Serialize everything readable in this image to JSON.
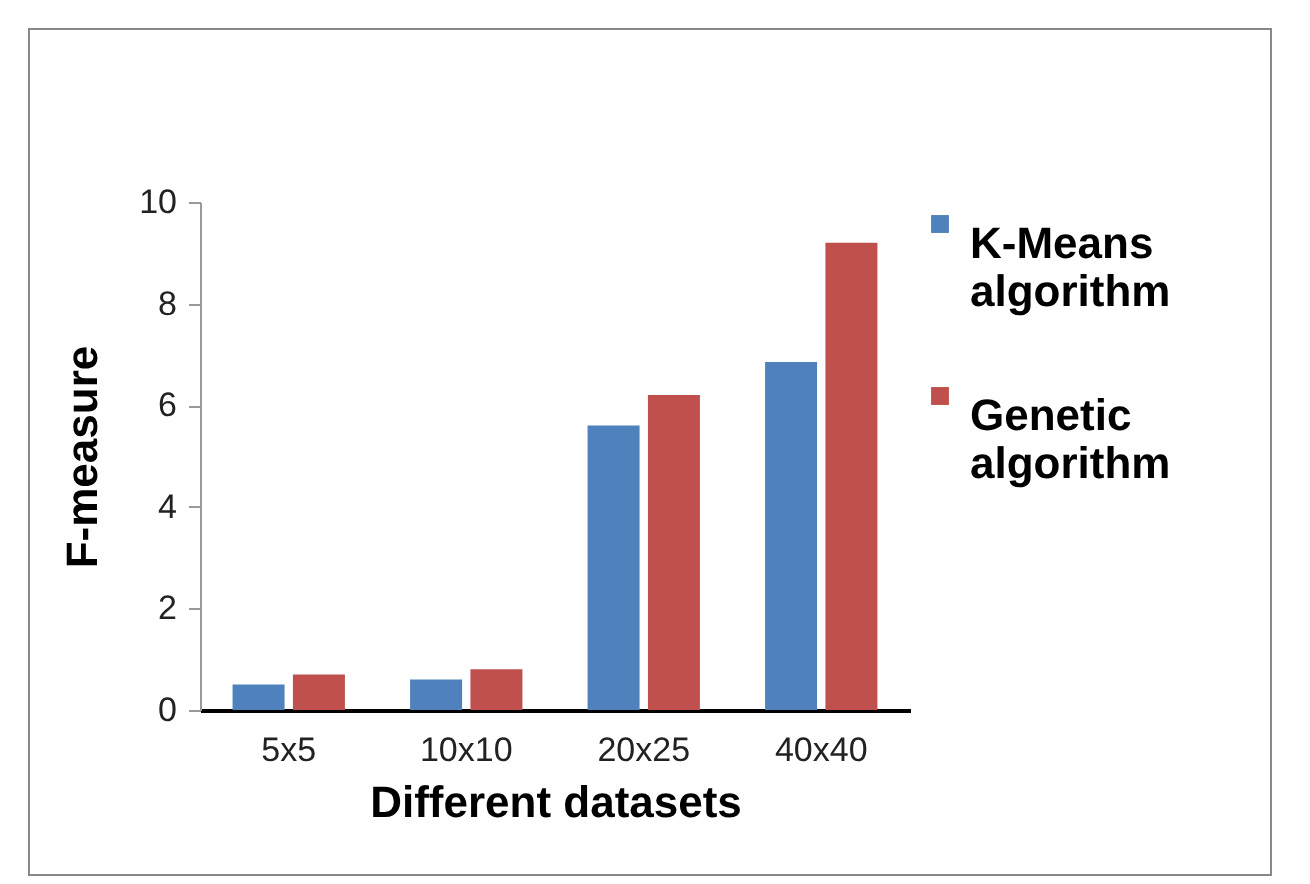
{
  "chart_data": {
    "type": "bar",
    "xlabel": "Different datasets",
    "ylabel": "F-measure",
    "categories": [
      "5x5",
      "10x10",
      "20x25",
      "40x40"
    ],
    "series": [
      {
        "name": "K-Means algorithm",
        "color": "#4f81bd",
        "values": [
          0.5,
          0.6,
          5.6,
          6.85
        ]
      },
      {
        "name": "Genetic algorithm",
        "color": "#c0504d",
        "values": [
          0.7,
          0.8,
          6.2,
          9.2
        ]
      }
    ],
    "ylim": [
      0,
      10
    ],
    "yticks": [
      0,
      2,
      4,
      6,
      8,
      10
    ],
    "grid": false,
    "legend": "right"
  }
}
